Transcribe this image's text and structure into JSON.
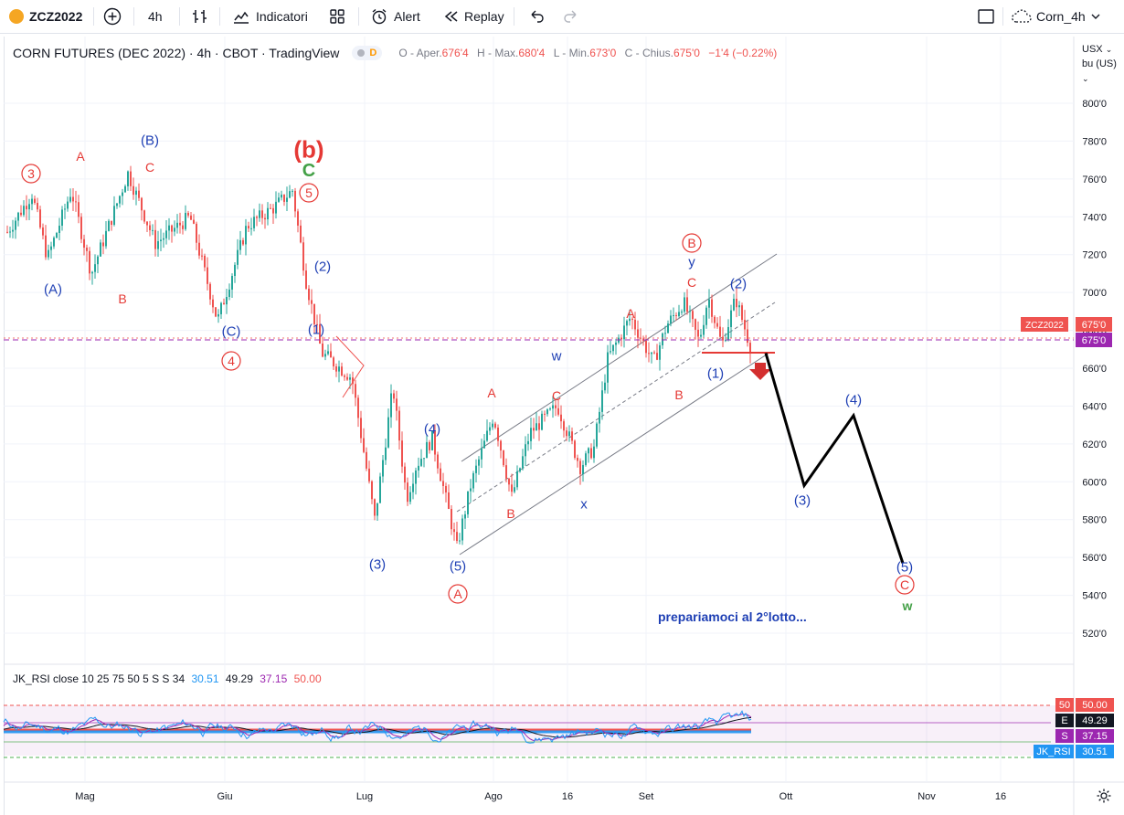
{
  "toolbar": {
    "symbol": "ZCZ2022",
    "interval": "4h",
    "indicators_label": "Indicatori",
    "alert_label": "Alert",
    "replay_label": "Replay",
    "layout_name": "Corn_4h"
  },
  "legend": {
    "title": "CORN FUTURES (DEC 2022) · 4h · CBOT · TradingView",
    "badge": "D",
    "o_label": "O - Aper.",
    "o_val": "676'4",
    "h_label": "H - Max.",
    "h_val": "680'4",
    "l_label": "L - Min.",
    "l_val": "673'0",
    "c_label": "C - Chius.",
    "c_val": "675'0",
    "change": "−1'4 (−0.22%)"
  },
  "price_axis": {
    "currency": "USX",
    "unit": "bu (US)",
    "last_symbol": "ZCZ2022",
    "last_price": "675'0",
    "last_price_2": "675'0"
  },
  "rsi": {
    "legend_title": "JK_RSI close 10 25 75 50 5 S S 34",
    "legend_vals": [
      "30.51",
      "49.29",
      "37.15",
      "50.00"
    ],
    "tags": [
      {
        "key": "50",
        "value": "50.00",
        "color": "#ef5350"
      },
      {
        "key": "E",
        "value": "49.29",
        "color": "#131722"
      },
      {
        "key": "S",
        "value": "37.15",
        "color": "#9c27b0"
      },
      {
        "key": "JK_RSI",
        "value": "30.51",
        "color": "#2196f3"
      }
    ]
  },
  "chart_data": {
    "type": "candlestick",
    "title": "CORN FUTURES (DEC 2022) · 4h · CBOT · TradingView",
    "y_range": [
      510,
      830
    ],
    "y_ticks": [
      "800'0",
      "780'0",
      "760'0",
      "740'0",
      "720'0",
      "700'0",
      "680'0",
      "660'0",
      "640'0",
      "620'0",
      "600'0",
      "580'0",
      "560'0",
      "540'0",
      "520'0"
    ],
    "x_ticks": [
      "Mag",
      "Giu",
      "Lug",
      "Ago",
      "16",
      "Set",
      "Ott",
      "Nov",
      "16"
    ],
    "price_path_x": [
      "Apr 20",
      "Apr 26",
      "May 2",
      "May 8",
      "May 12",
      "May 18",
      "May 24",
      "May 30",
      "Jun 3",
      "Jun 8",
      "Jun 13",
      "Jun 17",
      "Jun 20",
      "Jun 23",
      "Jun 28",
      "Jul 1",
      "Jul 5",
      "Jul 8",
      "Jul 12",
      "Jul 15",
      "Jul 18",
      "Jul 22",
      "Jul 26",
      "Aug 1",
      "Aug 4",
      "Aug 8",
      "Aug 12",
      "Aug 16",
      "Aug 19",
      "Aug 23",
      "Aug 26",
      "Aug 30",
      "Sep 2",
      "Sep 6",
      "Sep 9",
      "Sep 12",
      "Sep 15",
      "Sep 19",
      "Sep 21"
    ],
    "price_path": [
      732,
      752,
      718,
      754,
      710,
      763,
      726,
      740,
      685,
      735,
      745,
      754,
      706,
      668,
      665,
      655,
      580,
      650,
      591,
      608,
      623,
      565,
      598,
      635,
      592,
      626,
      640,
      608,
      618,
      665,
      687,
      663,
      683,
      695,
      674,
      698,
      672,
      697,
      670
    ],
    "last_price": 675,
    "horizontal_levels": [
      {
        "name": "last price",
        "value": 675,
        "style": "dashed",
        "color": "#9c27b0"
      }
    ],
    "forecast_path": [
      {
        "label": "",
        "value": 668
      },
      {
        "label": "(3)",
        "value": 598
      },
      {
        "label": "(4)",
        "value": 635
      },
      {
        "label": "(5)",
        "value": 557
      }
    ],
    "wave_labels": [
      "(b)",
      "C",
      "3",
      "A",
      "(B)",
      "C",
      "5",
      "(A)",
      "B",
      "(C)",
      "4",
      "(1)",
      "(2)",
      "(3)",
      "(4)",
      "(5)",
      "A",
      "w",
      "A",
      "B",
      "C",
      "x",
      "A",
      "B",
      "C",
      "y",
      "B",
      "(1)",
      "(2)",
      "(3)",
      "(4)",
      "(5)",
      "C",
      "w"
    ],
    "annotation": "prepariamoci al 2°lotto...",
    "rsi": {
      "series": [
        {
          "name": "JK_RSI",
          "last": 30.51,
          "color": "#2196f3"
        },
        {
          "name": "E",
          "last": 49.29,
          "color": "#131722"
        },
        {
          "name": "S",
          "last": 37.15,
          "color": "#9c27b0"
        },
        {
          "name": "50",
          "last": 50.0,
          "color": "#ef5350"
        }
      ]
    }
  }
}
